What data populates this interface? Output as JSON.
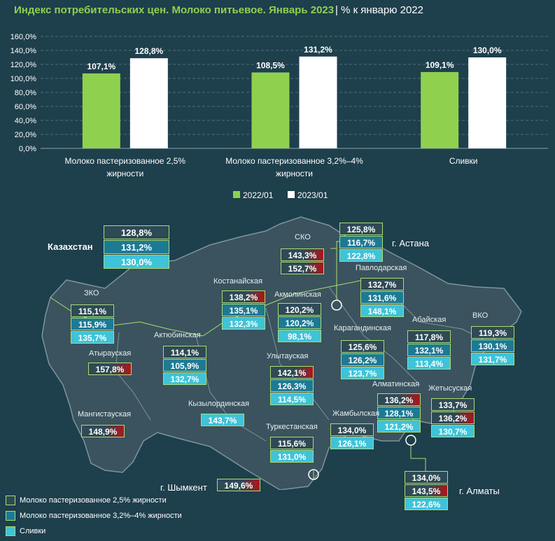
{
  "header": {
    "title": "Индекс потребительских цен. Молоко питьевое. Январь 2023",
    "subtitle": " | % к январю 2022"
  },
  "colors": {
    "series_2022": "#8fd14f",
    "series_2023": "#ffffff",
    "bg": "#1e3f4c"
  },
  "chart_data": {
    "type": "bar",
    "categories": [
      "Молоко пастеризованное 2,5% жирности",
      "Молоко пастеризованное 3,2%–4% жирности",
      "Сливки"
    ],
    "category_lines": [
      [
        "Молоко пастеризованное 2,5%",
        "жирности"
      ],
      [
        "Молоко пастеризованное 3,2%–4%",
        "жирности"
      ],
      [
        "Сливки"
      ]
    ],
    "series": [
      {
        "name": "2022/01",
        "values": [
          107.1,
          108.5,
          109.1
        ],
        "labels": [
          "107,1%",
          "108,5%",
          "109,1%"
        ]
      },
      {
        "name": "2023/01",
        "values": [
          128.8,
          131.2,
          130.0
        ],
        "labels": [
          "128,8%",
          "131,2%",
          "130,0%"
        ]
      }
    ],
    "yticks": [
      "0,0%",
      "20,0%",
      "40,0%",
      "60,0%",
      "80,0%",
      "100,0%",
      "120,0%",
      "140,0%",
      "160,0%"
    ],
    "ylim": [
      0,
      160
    ],
    "grid": true,
    "legend_position": "bottom"
  },
  "map": {
    "kazakhstan": {
      "label": "Казахстан",
      "values": [
        "128,8%",
        "131,2%",
        "130,0%"
      ]
    },
    "regions": [
      {
        "id": "zko",
        "label": "ЗКО",
        "values": [
          "115,1%",
          "115,9%",
          "135,7%"
        ],
        "hi": [
          false,
          false,
          false
        ]
      },
      {
        "id": "atyrau",
        "label": "Атырауская",
        "values": [
          "157,8%"
        ],
        "hi": [
          true
        ]
      },
      {
        "id": "mangistau",
        "label": "Мангистауская",
        "values": [
          "148,9%"
        ],
        "hi": [
          true
        ]
      },
      {
        "id": "aktobe",
        "label": "Актюбинская",
        "values": [
          "114,1%",
          "105,9%",
          "132,7%"
        ],
        "hi": [
          false,
          false,
          false
        ]
      },
      {
        "id": "kostanay",
        "label": "Костанайская",
        "values": [
          "138,2%",
          "135,1%",
          "132,3%"
        ],
        "hi": [
          true,
          false,
          false
        ]
      },
      {
        "id": "sko",
        "label": "СКО",
        "values": [
          "143,3%",
          "152,7%"
        ],
        "hi": [
          true,
          true
        ]
      },
      {
        "id": "akmola",
        "label": "Акмолинская",
        "values": [
          "120,2%",
          "120,2%",
          "98,1%"
        ],
        "hi": [
          false,
          false,
          false
        ]
      },
      {
        "id": "astana",
        "label": "г. Астана",
        "values": [
          "125,8%",
          "116,7%",
          "122,8%"
        ],
        "hi": [
          false,
          false,
          false
        ]
      },
      {
        "id": "pavlodar",
        "label": "Павлодарская",
        "values": [
          "132,7%",
          "131,6%",
          "148,1%"
        ],
        "hi": [
          false,
          false,
          false
        ]
      },
      {
        "id": "karaganda",
        "label": "Карагандинская",
        "values": [
          "125,6%",
          "126,2%",
          "123,7%"
        ],
        "hi": [
          false,
          false,
          false
        ]
      },
      {
        "id": "abay",
        "label": "Абайская",
        "values": [
          "117,8%",
          "132,1%",
          "113,4%"
        ],
        "hi": [
          false,
          false,
          false
        ]
      },
      {
        "id": "vko",
        "label": "ВКО",
        "values": [
          "119,3%",
          "130,1%",
          "131,7%"
        ],
        "hi": [
          false,
          false,
          false
        ]
      },
      {
        "id": "ulytau",
        "label": "Улытауская",
        "values": [
          "142,1%",
          "126,3%",
          "114,5%"
        ],
        "hi": [
          true,
          false,
          false
        ]
      },
      {
        "id": "kyzylorda",
        "label": "Кызылординская",
        "values": [
          "143,7%"
        ],
        "hi": [
          false
        ]
      },
      {
        "id": "almaty_obl",
        "label": "Алматинская",
        "values": [
          "136,2%",
          "128,1%",
          "121,2%"
        ],
        "hi": [
          true,
          false,
          false
        ]
      },
      {
        "id": "zhetysu",
        "label": "Жетысуская",
        "values": [
          "133,7%",
          "136,2%",
          "130,7%"
        ],
        "hi": [
          false,
          true,
          false
        ]
      },
      {
        "id": "zhambyl",
        "label": "Жамбылская",
        "values": [
          "134,0%",
          "126,1%"
        ],
        "hi": [
          false,
          false
        ]
      },
      {
        "id": "turkestan",
        "label": "Туркестанская",
        "values": [
          "115,6%",
          "131,0%"
        ],
        "hi": [
          false,
          false
        ]
      },
      {
        "id": "shymkent",
        "label": "г. Шымкент",
        "values": [
          "149,6%"
        ],
        "hi": [
          true
        ]
      },
      {
        "id": "almaty",
        "label": "г. Алматы",
        "values": [
          "134,0%",
          "143,5%",
          "122,6%"
        ],
        "hi": [
          false,
          true,
          false
        ]
      }
    ],
    "legend": [
      "Молоко пастеризованное 2,5% жирности",
      "Молоко пастеризованное 3,2%–4% жирности",
      "Сливки"
    ]
  }
}
